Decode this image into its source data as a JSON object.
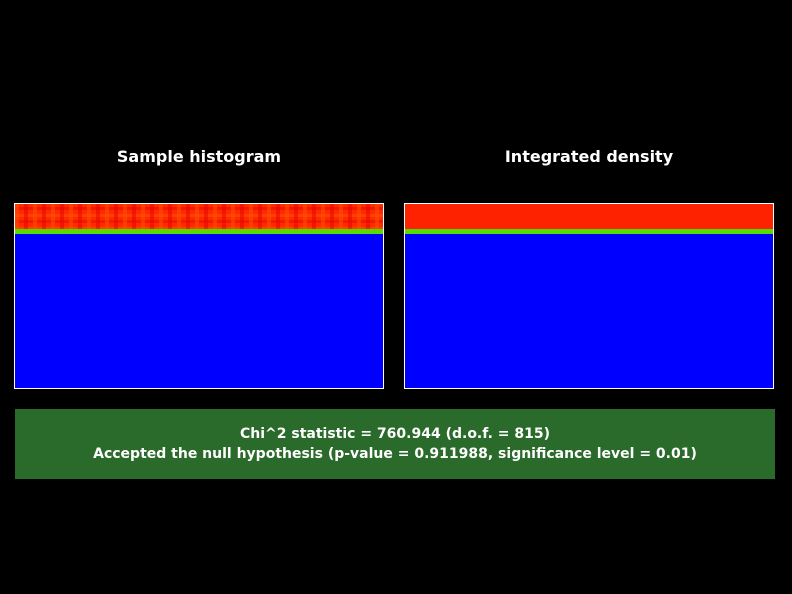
{
  "panels": {
    "left": {
      "title": "Sample histogram"
    },
    "right": {
      "title": "Integrated density"
    }
  },
  "colors": {
    "background": "#000000",
    "panel_fill": "#0000ff",
    "band_fill": "#ff2200",
    "band_edge": "#55dd00",
    "result_box": "#2a6a2a"
  },
  "result": {
    "line1": "Chi^2 statistic = 760.944 (d.o.f. = 815)",
    "line2": "Accepted the null hypothesis (p-value = 0.911988, significance level = 0.01)"
  }
}
